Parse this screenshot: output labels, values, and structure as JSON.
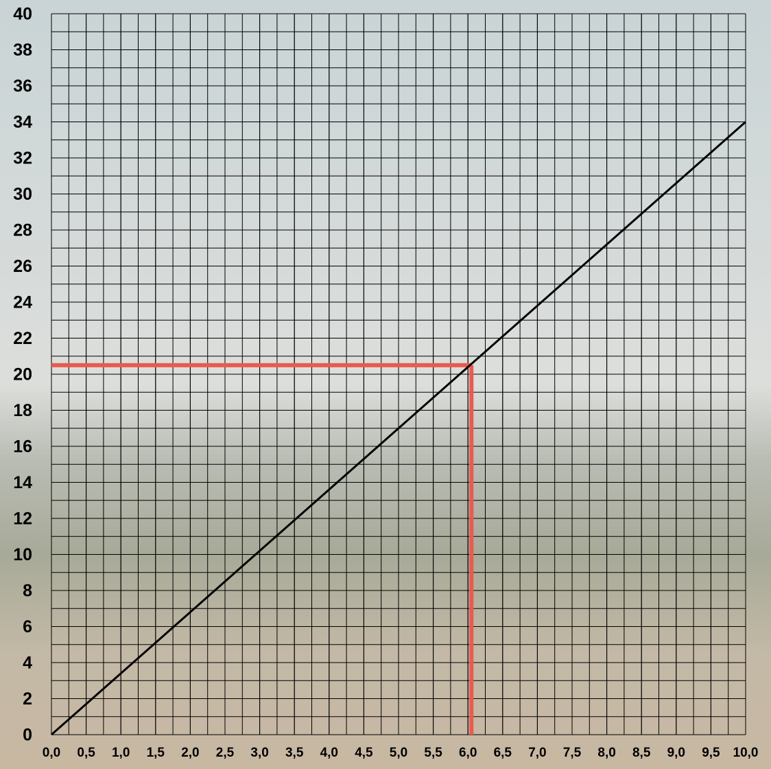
{
  "chart_data": {
    "type": "line",
    "x": [
      0,
      10
    ],
    "series": [
      {
        "name": "line",
        "color": "#000000",
        "values": [
          0,
          34
        ]
      }
    ],
    "xlim": [
      0,
      10
    ],
    "ylim": [
      0,
      40
    ],
    "xticks": [
      {
        "value": 0,
        "label": "0,0"
      },
      {
        "value": 0.5,
        "label": "0,5"
      },
      {
        "value": 1,
        "label": "1,0"
      },
      {
        "value": 1.5,
        "label": "1,5"
      },
      {
        "value": 2,
        "label": "2,0"
      },
      {
        "value": 2.5,
        "label": "2,5"
      },
      {
        "value": 3,
        "label": "3,0"
      },
      {
        "value": 3.5,
        "label": "3,5"
      },
      {
        "value": 4,
        "label": "4,0"
      },
      {
        "value": 4.5,
        "label": "4,5"
      },
      {
        "value": 5,
        "label": "5,0"
      },
      {
        "value": 5.5,
        "label": "5,5"
      },
      {
        "value": 6,
        "label": "6,0"
      },
      {
        "value": 6.5,
        "label": "6,5"
      },
      {
        "value": 7,
        "label": "7,0"
      },
      {
        "value": 7.5,
        "label": "7,5"
      },
      {
        "value": 8,
        "label": "8,0"
      },
      {
        "value": 8.5,
        "label": "8,5"
      },
      {
        "value": 9,
        "label": "9,0"
      },
      {
        "value": 9.5,
        "label": "9,5"
      },
      {
        "value": 10,
        "label": "10,0"
      }
    ],
    "yticks": [
      0,
      2,
      4,
      6,
      8,
      10,
      12,
      14,
      16,
      18,
      20,
      22,
      24,
      26,
      28,
      30,
      32,
      34,
      36,
      38,
      40
    ],
    "grid": true,
    "x_grid_step": 0.25,
    "y_grid_step": 1,
    "reference_lines": {
      "x": 6.05,
      "y": 20.5,
      "color": "#ea5a50"
    }
  }
}
